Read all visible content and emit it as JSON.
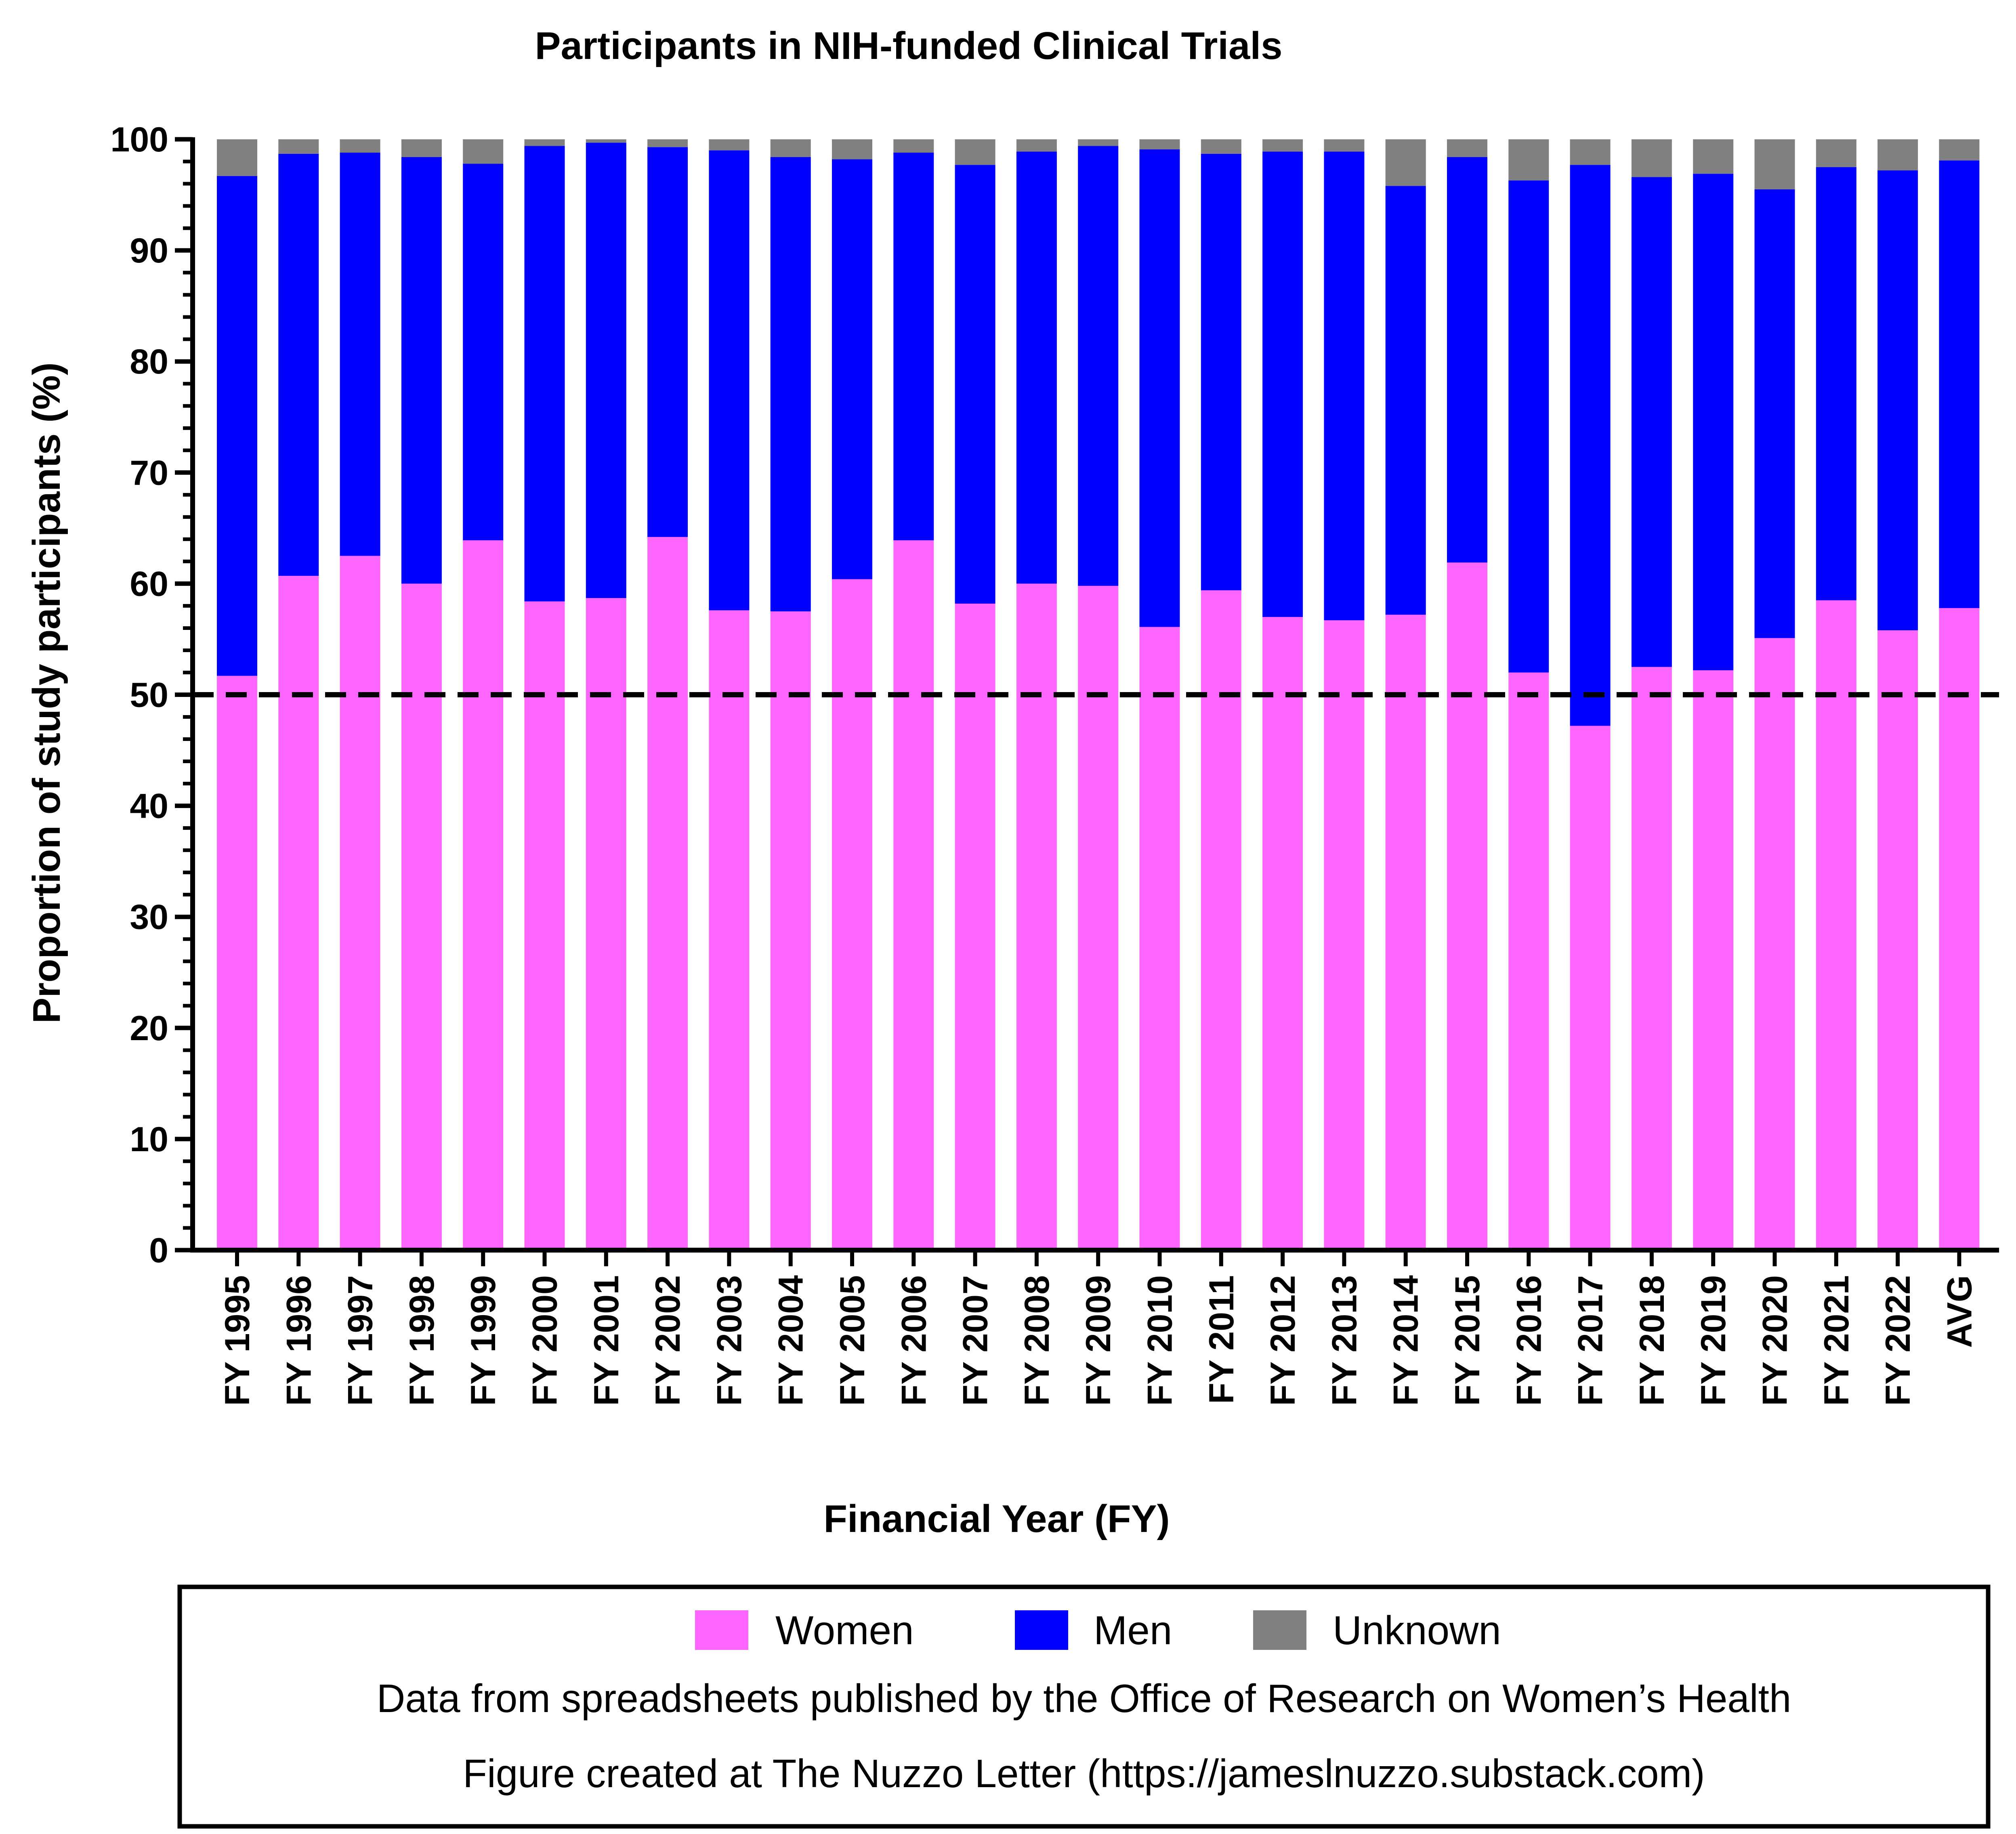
{
  "chart_data": {
    "type": "bar",
    "stacked": true,
    "title": "Participants in NIH-funded Clinical Trials",
    "xlabel": "Financial Year (FY)",
    "ylabel": "Proportion of study participants (%)",
    "ylim": [
      0,
      100
    ],
    "yticks": [
      "0",
      "10",
      "20",
      "30",
      "40",
      "50",
      "60",
      "70",
      "80",
      "90",
      "100"
    ],
    "minor_ticks_per_major": 5,
    "grid": false,
    "reference_line": {
      "y": 50,
      "style": "dashed",
      "color": "#000000"
    },
    "categories": [
      "FY 1995",
      "FY 1996",
      "FY 1997",
      "FY 1998",
      "FY 1999",
      "FY 2000",
      "FY 2001",
      "FY 2002",
      "FY 2003",
      "FY 2004",
      "FY 2005",
      "FY 2006",
      "FY 2007",
      "FY 2008",
      "FY 2009",
      "FY 2010",
      "FY 2011",
      "FY 2012",
      "FY 2013",
      "FY 2014",
      "FY 2015",
      "FY 2016",
      "FY 2017",
      "FY 2018",
      "FY 2019",
      "FY 2020",
      "FY 2021",
      "FY 2022",
      "AVG"
    ],
    "series": [
      {
        "name": "Women",
        "color": "#ff66ff",
        "values": [
          51.7,
          60.7,
          62.5,
          60.0,
          63.9,
          58.4,
          58.7,
          64.2,
          57.6,
          57.5,
          60.4,
          63.9,
          58.2,
          60.0,
          59.8,
          56.1,
          59.4,
          57.0,
          56.7,
          57.2,
          61.9,
          52.0,
          47.2,
          52.5,
          52.2,
          55.1,
          58.5,
          55.8,
          57.8
        ]
      },
      {
        "name": "Men",
        "color": "#0000ff",
        "values": [
          45.0,
          38.0,
          36.3,
          38.4,
          33.9,
          41.0,
          41.0,
          35.1,
          41.4,
          40.9,
          37.8,
          34.9,
          39.5,
          38.9,
          39.6,
          43.0,
          39.3,
          41.9,
          42.2,
          38.6,
          36.5,
          44.3,
          50.5,
          44.1,
          44.7,
          40.4,
          39.0,
          41.4,
          40.3
        ]
      },
      {
        "name": "Unknown",
        "color": "#808080",
        "values": [
          3.3,
          1.3,
          1.2,
          1.6,
          2.2,
          0.6,
          0.3,
          0.7,
          1.0,
          1.6,
          1.8,
          1.2,
          2.3,
          1.1,
          0.6,
          0.9,
          1.3,
          1.1,
          1.1,
          4.2,
          1.6,
          3.7,
          2.3,
          3.4,
          3.1,
          4.5,
          2.5,
          2.8,
          1.9
        ]
      }
    ],
    "legend": {
      "placement": "bottom",
      "boxed": true
    }
  },
  "notes": {
    "source": "Data from spreadsheets published by the Office of Research on Women’s Health",
    "credit": "Figure created at The Nuzzo Letter (https://jameslnuzzo.substack.com)"
  }
}
